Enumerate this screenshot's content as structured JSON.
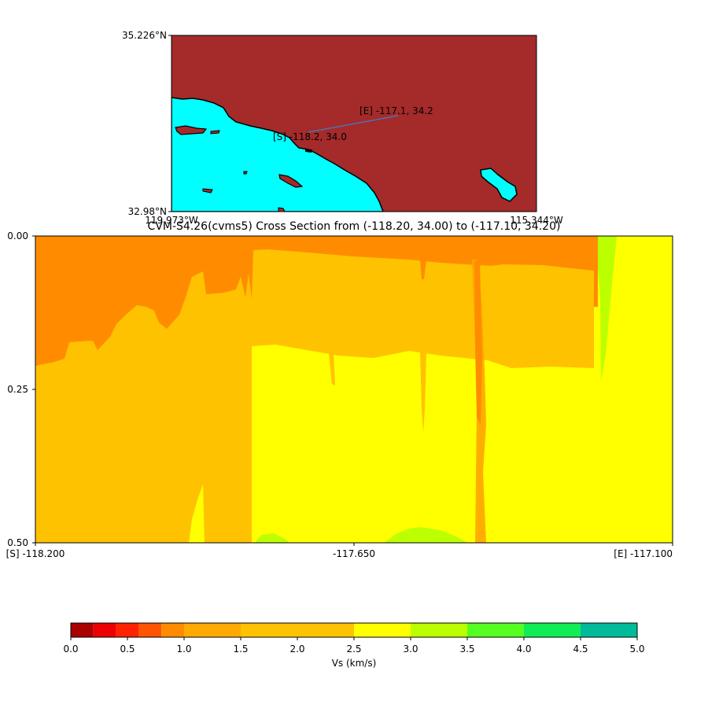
{
  "map": {
    "lat_max_label": "35.226°N",
    "lat_min_label": "32.98°N",
    "lon_min_label": "119.973°W",
    "lon_max_label": "115.344°W",
    "start_label": "[S] -118.2, 34.0",
    "end_label": "[E] -117.1, 34.2",
    "land_color": "#a52a2a",
    "water_color": "#00ffff",
    "path_color": "#4c72b0"
  },
  "chart_data": {
    "type": "heatmap",
    "title": "CVM-S4.26(cvms5) Cross Section from (-118.20, 34.00) to (-117.10, 34.20)",
    "x_tick_labels": [
      "[S] -118.200",
      "-117.650",
      "[E] -117.100"
    ],
    "y_tick_labels": [
      "0.00",
      "0.25",
      "0.50"
    ],
    "xlim": [
      -118.2,
      -117.1
    ],
    "ylim": [
      0.5,
      0.0
    ],
    "colorbar": {
      "label": "Vs (km/s)",
      "ticks": [
        "0.0",
        "0.5",
        "1.0",
        "1.5",
        "2.0",
        "2.5",
        "3.0",
        "3.5",
        "4.0",
        "4.5",
        "5.0"
      ],
      "bins": [
        0.0,
        0.2,
        0.4,
        0.6,
        0.8,
        1.0,
        1.5,
        2.5,
        3.0,
        3.5,
        4.0,
        4.5,
        5.0
      ],
      "colors": [
        "#aa0000",
        "#ee0000",
        "#ff2200",
        "#ff5500",
        "#ff8c00",
        "#ffaa00",
        "#ffc200",
        "#ffff00",
        "#bbff00",
        "#55ff22",
        "#11ee55",
        "#00bb99",
        "#0044ff"
      ]
    }
  }
}
